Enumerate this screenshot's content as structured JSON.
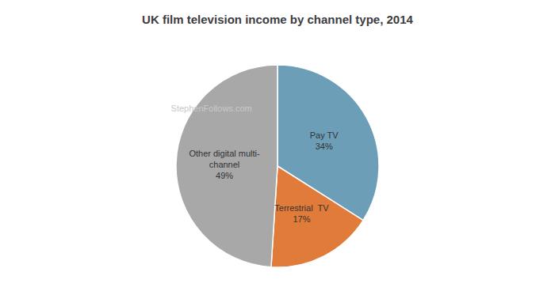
{
  "chart_data": {
    "type": "pie",
    "title": "UK film television income by channel type, 2014",
    "categories": [
      "Pay TV\n34%",
      "Terrestrial  TV\n17%",
      "Other digital multi-\nchannel\n49%"
    ],
    "values": [
      34,
      17,
      49
    ],
    "colors": [
      "#6d9eb8",
      "#e07b39",
      "#a8a8a8"
    ],
    "annotations": [
      {
        "text": "StephenFollows.com",
        "color": "#c8c8c8"
      }
    ]
  }
}
